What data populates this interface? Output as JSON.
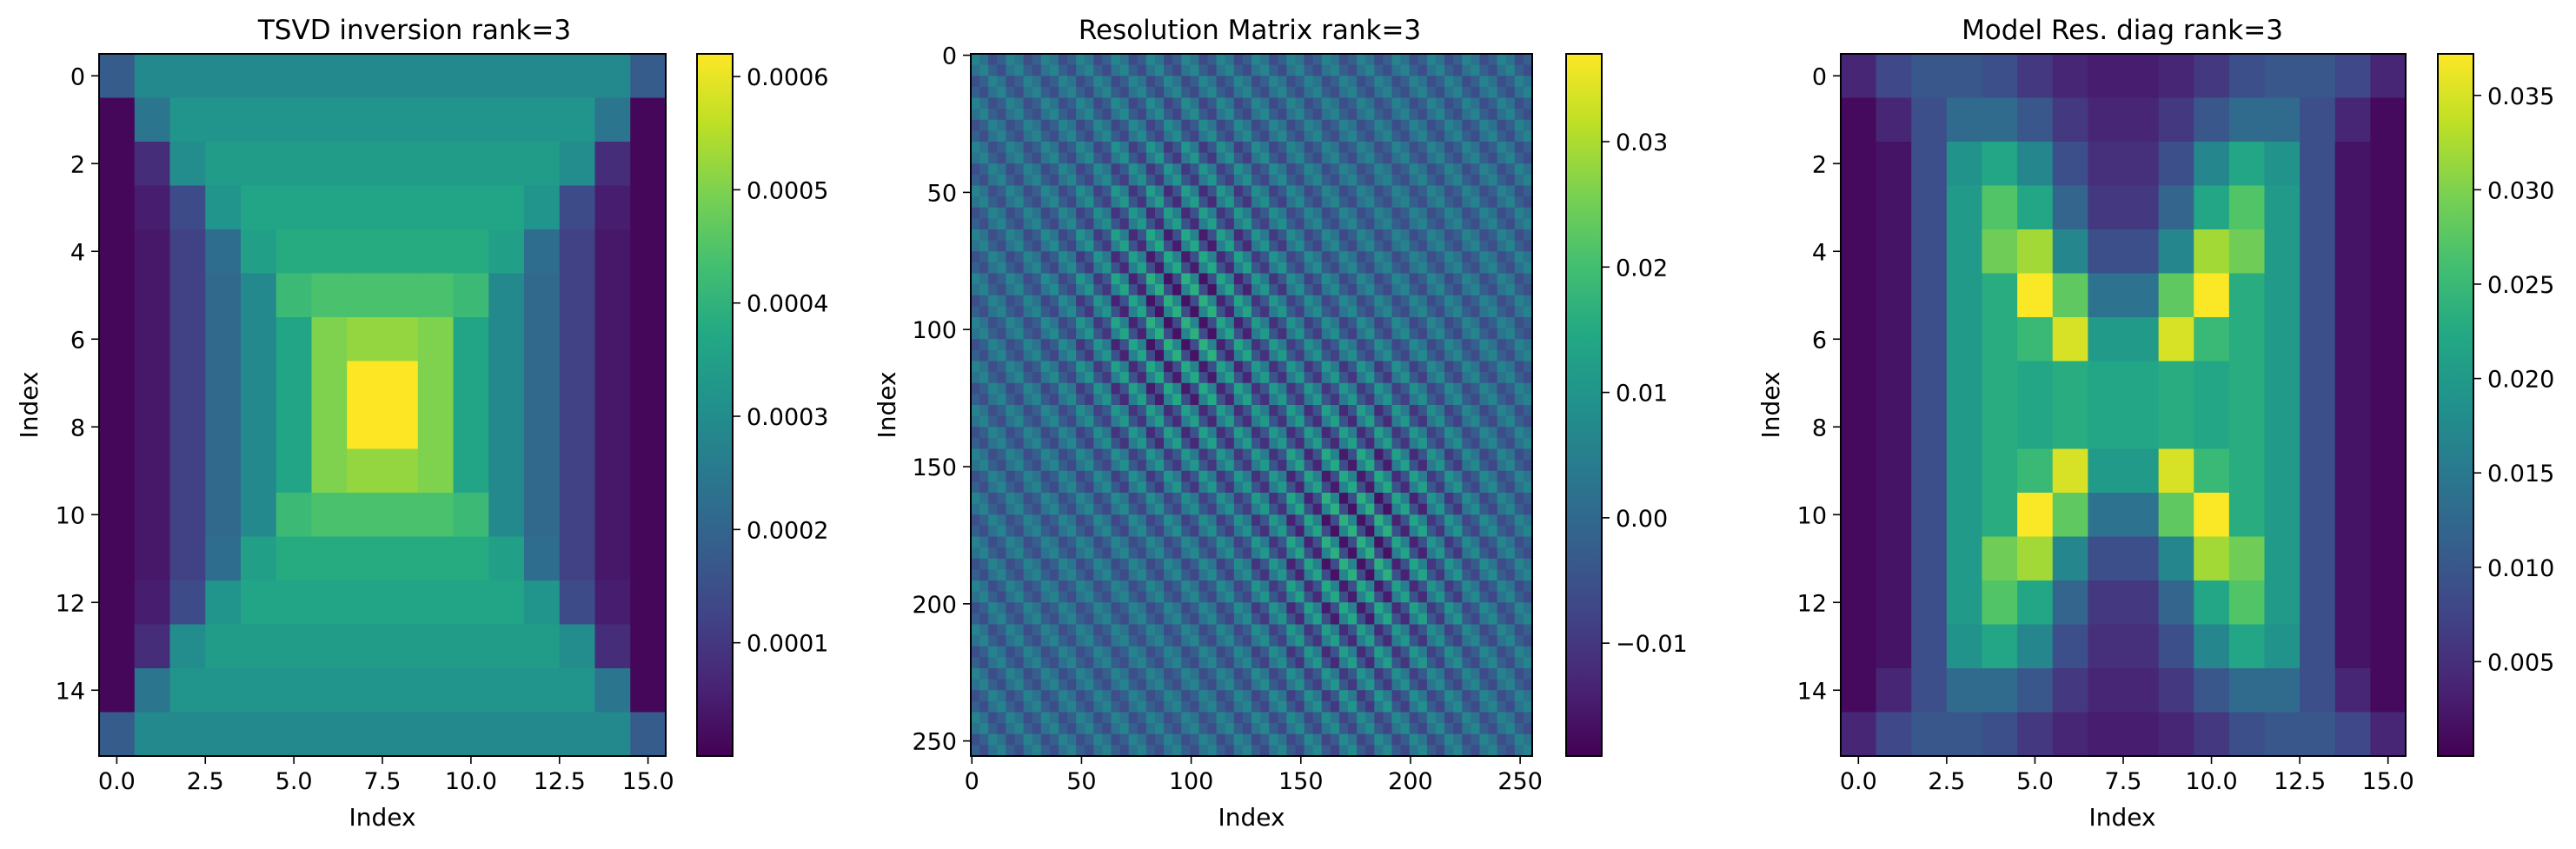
{
  "chart_data": [
    {
      "type": "heatmap",
      "title": "TSVD inversion rank=3",
      "xlabel": "Index",
      "ylabel": "Index",
      "colormap": "viridis",
      "shape": [
        16,
        16
      ],
      "origin": "upper",
      "x_ticks": [
        0.0,
        2.5,
        5.0,
        7.5,
        10.0,
        12.5,
        15.0
      ],
      "x_tick_labels": [
        "0.0",
        "2.5",
        "5.0",
        "7.5",
        "10.0",
        "12.5",
        "15.0"
      ],
      "y_ticks": [
        0,
        2,
        4,
        6,
        8,
        10,
        12,
        14
      ],
      "y_tick_labels": [
        "0",
        "2",
        "4",
        "6",
        "8",
        "10",
        "12",
        "14"
      ],
      "colorbar": {
        "vmin": 0.0,
        "vmax": 0.00062,
        "ticks": [
          0.0001,
          0.0002,
          0.0003,
          0.0004,
          0.0005,
          0.0006
        ],
        "tick_labels": [
          "0.0001",
          "0.0002",
          "0.0003",
          "0.0004",
          "0.0005",
          "0.0006"
        ]
      },
      "values": [
        [
          0.00018,
          0.00029,
          0.00029,
          0.00029,
          0.00029,
          0.00029,
          0.00029,
          0.00029,
          0.00029,
          0.00029,
          0.00029,
          0.00029,
          0.00029,
          0.00029,
          0.00029,
          0.00018
        ],
        [
          1e-05,
          0.00024,
          0.00032,
          0.00032,
          0.00032,
          0.00032,
          0.00032,
          0.00032,
          0.00032,
          0.00032,
          0.00032,
          0.00032,
          0.00032,
          0.00032,
          0.00024,
          1e-05
        ],
        [
          1e-05,
          8e-05,
          0.0003,
          0.00034,
          0.00034,
          0.00034,
          0.00034,
          0.00034,
          0.00034,
          0.00034,
          0.00034,
          0.00034,
          0.00034,
          0.0003,
          8e-05,
          1e-05
        ],
        [
          1e-05,
          5e-05,
          0.00014,
          0.00032,
          0.00036,
          0.00036,
          0.00036,
          0.00036,
          0.00036,
          0.00036,
          0.00036,
          0.00036,
          0.00032,
          0.00014,
          5e-05,
          1e-05
        ],
        [
          1e-05,
          4e-05,
          0.00012,
          0.00022,
          0.00035,
          0.00038,
          0.00038,
          0.00038,
          0.00038,
          0.00038,
          0.00038,
          0.00035,
          0.00022,
          0.00012,
          4e-05,
          1e-05
        ],
        [
          1e-05,
          4e-05,
          0.00012,
          0.00021,
          0.00029,
          0.00042,
          0.00044,
          0.00044,
          0.00044,
          0.00044,
          0.00042,
          0.00029,
          0.00021,
          0.00012,
          4e-05,
          1e-05
        ],
        [
          1e-05,
          4e-05,
          0.00012,
          0.00021,
          0.00029,
          0.00036,
          0.0005,
          0.00052,
          0.00052,
          0.0005,
          0.00036,
          0.00029,
          0.00021,
          0.00012,
          4e-05,
          1e-05
        ],
        [
          1e-05,
          4e-05,
          0.00012,
          0.00021,
          0.00029,
          0.00036,
          0.0005,
          0.00062,
          0.00062,
          0.0005,
          0.00036,
          0.00029,
          0.00021,
          0.00012,
          4e-05,
          1e-05
        ],
        [
          1e-05,
          4e-05,
          0.00012,
          0.00021,
          0.00029,
          0.00036,
          0.0005,
          0.00062,
          0.00062,
          0.0005,
          0.00036,
          0.00029,
          0.00021,
          0.00012,
          4e-05,
          1e-05
        ],
        [
          1e-05,
          4e-05,
          0.00012,
          0.00021,
          0.00029,
          0.00036,
          0.0005,
          0.00052,
          0.00052,
          0.0005,
          0.00036,
          0.00029,
          0.00021,
          0.00012,
          4e-05,
          1e-05
        ],
        [
          1e-05,
          4e-05,
          0.00012,
          0.00021,
          0.00029,
          0.00042,
          0.00044,
          0.00044,
          0.00044,
          0.00044,
          0.00042,
          0.00029,
          0.00021,
          0.00012,
          4e-05,
          1e-05
        ],
        [
          1e-05,
          4e-05,
          0.00012,
          0.00022,
          0.00035,
          0.00038,
          0.00038,
          0.00038,
          0.00038,
          0.00038,
          0.00038,
          0.00035,
          0.00022,
          0.00012,
          4e-05,
          1e-05
        ],
        [
          1e-05,
          5e-05,
          0.00014,
          0.00032,
          0.00036,
          0.00036,
          0.00036,
          0.00036,
          0.00036,
          0.00036,
          0.00036,
          0.00036,
          0.00032,
          0.00014,
          5e-05,
          1e-05
        ],
        [
          1e-05,
          8e-05,
          0.0003,
          0.00034,
          0.00034,
          0.00034,
          0.00034,
          0.00034,
          0.00034,
          0.00034,
          0.00034,
          0.00034,
          0.00034,
          0.0003,
          8e-05,
          1e-05
        ],
        [
          1e-05,
          0.00024,
          0.00032,
          0.00032,
          0.00032,
          0.00032,
          0.00032,
          0.00032,
          0.00032,
          0.00032,
          0.00032,
          0.00032,
          0.00032,
          0.00032,
          0.00024,
          1e-05
        ],
        [
          0.00018,
          0.00029,
          0.00029,
          0.00029,
          0.00029,
          0.00029,
          0.00029,
          0.00029,
          0.00029,
          0.00029,
          0.00029,
          0.00029,
          0.00029,
          0.00029,
          0.00029,
          0.00018
        ]
      ]
    },
    {
      "type": "heatmap",
      "title": "Resolution Matrix rank=3",
      "xlabel": "Index",
      "ylabel": "Index",
      "colormap": "viridis",
      "shape": [
        256,
        256
      ],
      "origin": "upper",
      "pattern": "oscillating blocks of 16×16 sub-cells; strongest values near (90, 90) and (170, 170)",
      "x_ticks": [
        0,
        50,
        100,
        150,
        200,
        250
      ],
      "x_tick_labels": [
        "0",
        "50",
        "100",
        "150",
        "200",
        "250"
      ],
      "y_ticks": [
        0,
        50,
        100,
        150,
        200,
        250
      ],
      "y_tick_labels": [
        "0",
        "50",
        "100",
        "150",
        "200",
        "250"
      ],
      "colorbar": {
        "vmin": -0.019,
        "vmax": 0.037,
        "ticks": [
          -0.01,
          0.0,
          0.01,
          0.02,
          0.03
        ],
        "tick_labels": [
          "−0.01",
          "0.00",
          "0.01",
          "0.02",
          "0.03"
        ]
      }
    },
    {
      "type": "heatmap",
      "title": "Model Res. diag rank=3",
      "xlabel": "Index",
      "ylabel": "Index",
      "colormap": "viridis",
      "shape": [
        16,
        16
      ],
      "origin": "upper",
      "x_ticks": [
        0.0,
        2.5,
        5.0,
        7.5,
        10.0,
        12.5,
        15.0
      ],
      "x_tick_labels": [
        "0.0",
        "2.5",
        "5.0",
        "7.5",
        "10.0",
        "12.5",
        "15.0"
      ],
      "y_ticks": [
        0,
        2,
        4,
        6,
        8,
        10,
        12,
        14
      ],
      "y_tick_labels": [
        "0",
        "2",
        "4",
        "6",
        "8",
        "10",
        "12",
        "14"
      ],
      "colorbar": {
        "vmin": 0.0,
        "vmax": 0.0372,
        "ticks": [
          0.005,
          0.01,
          0.015,
          0.02,
          0.025,
          0.03,
          0.035
        ],
        "tick_labels": [
          "0.005",
          "0.010",
          "0.015",
          "0.020",
          "0.025",
          "0.030",
          "0.035"
        ]
      },
      "values": [
        [
          0.004,
          0.008,
          0.01,
          0.01,
          0.009,
          0.006,
          0.004,
          0.003,
          0.003,
          0.004,
          0.006,
          0.009,
          0.01,
          0.01,
          0.008,
          0.004
        ],
        [
          0.001,
          0.004,
          0.009,
          0.013,
          0.013,
          0.01,
          0.006,
          0.004,
          0.004,
          0.006,
          0.01,
          0.013,
          0.013,
          0.009,
          0.004,
          0.001
        ],
        [
          0.001,
          0.002,
          0.009,
          0.019,
          0.022,
          0.017,
          0.009,
          0.005,
          0.005,
          0.009,
          0.017,
          0.022,
          0.019,
          0.009,
          0.002,
          0.001
        ],
        [
          0.001,
          0.002,
          0.009,
          0.02,
          0.027,
          0.022,
          0.012,
          0.006,
          0.006,
          0.012,
          0.022,
          0.027,
          0.02,
          0.009,
          0.002,
          0.001
        ],
        [
          0.001,
          0.002,
          0.009,
          0.02,
          0.029,
          0.032,
          0.017,
          0.009,
          0.009,
          0.017,
          0.032,
          0.029,
          0.02,
          0.009,
          0.002,
          0.001
        ],
        [
          0.001,
          0.002,
          0.009,
          0.02,
          0.023,
          0.037,
          0.028,
          0.014,
          0.014,
          0.028,
          0.037,
          0.023,
          0.02,
          0.009,
          0.002,
          0.001
        ],
        [
          0.001,
          0.002,
          0.009,
          0.02,
          0.023,
          0.025,
          0.035,
          0.02,
          0.02,
          0.035,
          0.025,
          0.023,
          0.02,
          0.009,
          0.002,
          0.001
        ],
        [
          0.001,
          0.002,
          0.009,
          0.02,
          0.023,
          0.022,
          0.023,
          0.022,
          0.022,
          0.023,
          0.022,
          0.023,
          0.02,
          0.009,
          0.002,
          0.001
        ],
        [
          0.001,
          0.002,
          0.009,
          0.02,
          0.023,
          0.022,
          0.023,
          0.022,
          0.022,
          0.023,
          0.022,
          0.023,
          0.02,
          0.009,
          0.002,
          0.001
        ],
        [
          0.001,
          0.002,
          0.009,
          0.02,
          0.023,
          0.025,
          0.035,
          0.02,
          0.02,
          0.035,
          0.025,
          0.023,
          0.02,
          0.009,
          0.002,
          0.001
        ],
        [
          0.001,
          0.002,
          0.009,
          0.02,
          0.023,
          0.037,
          0.028,
          0.014,
          0.014,
          0.028,
          0.037,
          0.023,
          0.02,
          0.009,
          0.002,
          0.001
        ],
        [
          0.001,
          0.002,
          0.009,
          0.02,
          0.029,
          0.032,
          0.017,
          0.009,
          0.009,
          0.017,
          0.032,
          0.029,
          0.02,
          0.009,
          0.002,
          0.001
        ],
        [
          0.001,
          0.002,
          0.009,
          0.02,
          0.027,
          0.022,
          0.012,
          0.006,
          0.006,
          0.012,
          0.022,
          0.027,
          0.02,
          0.009,
          0.002,
          0.001
        ],
        [
          0.001,
          0.002,
          0.009,
          0.019,
          0.022,
          0.017,
          0.009,
          0.005,
          0.005,
          0.009,
          0.017,
          0.022,
          0.019,
          0.009,
          0.002,
          0.001
        ],
        [
          0.001,
          0.004,
          0.009,
          0.013,
          0.013,
          0.01,
          0.006,
          0.004,
          0.004,
          0.006,
          0.01,
          0.013,
          0.013,
          0.009,
          0.004,
          0.001
        ],
        [
          0.004,
          0.008,
          0.01,
          0.01,
          0.009,
          0.006,
          0.004,
          0.003,
          0.003,
          0.004,
          0.006,
          0.009,
          0.01,
          0.01,
          0.008,
          0.004
        ]
      ]
    }
  ]
}
